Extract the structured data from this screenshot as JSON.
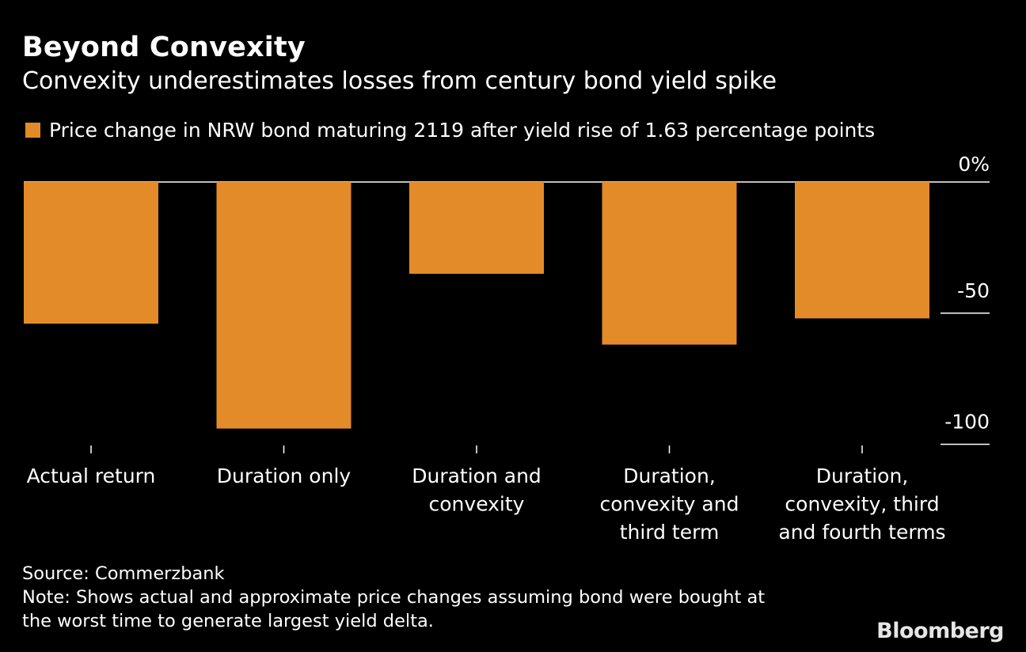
{
  "header": {
    "title": "Beyond Convexity",
    "subtitle": "Convexity underestimates losses from century bond yield spike"
  },
  "legend": {
    "label": "Price change in NRW bond maturing 2119 after yield rise of 1.63 percentage points",
    "color": "#e38b28"
  },
  "chart_data": {
    "type": "bar",
    "categories": [
      [
        "Actual return"
      ],
      [
        "Duration only"
      ],
      [
        "Duration and",
        "convexity"
      ],
      [
        "Duration,",
        "convexity and",
        "third term"
      ],
      [
        "Duration,",
        "convexity, third",
        "and fourth terms"
      ]
    ],
    "series": [
      {
        "name": "Price change in NRW bond maturing 2119 after yield rise of 1.63 percentage points",
        "values": [
          -54,
          -94,
          -35,
          -62,
          -52
        ]
      }
    ],
    "ylim": [
      -100,
      0
    ],
    "yticks": [
      0,
      -50,
      -100
    ],
    "ytick_labels": [
      "0%",
      "-50",
      "-100"
    ],
    "ylabel": "",
    "xlabel": "",
    "bar_color": "#e38b28",
    "grid": false,
    "legend_position": "top-left"
  },
  "footer": {
    "source": "Source: Commerzbank",
    "note_line1": "Note: Shows actual and approximate price changes assuming bond were bought at",
    "note_line2": "the worst time to generate largest yield delta."
  },
  "brand": "Bloomberg"
}
